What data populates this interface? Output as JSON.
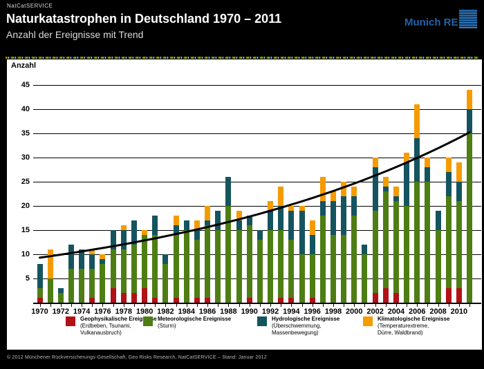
{
  "header": {
    "eyebrow": "NatCatSERVICE",
    "title": "Naturkatastrophen in Deutschland 1970 – 2011",
    "subtitle": "Anzahl der Ereignisse mit Trend",
    "brand": "Munich RE"
  },
  "chart_data": {
    "type": "bar",
    "stacked": true,
    "title": "Naturkatastrophen in Deutschland 1970 – 2011",
    "subtitle": "Anzahl der Ereignisse mit Trend",
    "ylabel": "Anzahl",
    "xlabel": "",
    "ylim": [
      0,
      45
    ],
    "yticks": [
      5,
      10,
      15,
      20,
      25,
      30,
      35,
      40,
      45
    ],
    "grid": "horizontal",
    "categories": [
      1970,
      1971,
      1972,
      1973,
      1974,
      1975,
      1976,
      1977,
      1978,
      1979,
      1980,
      1981,
      1982,
      1983,
      1984,
      1985,
      1986,
      1987,
      1988,
      1989,
      1990,
      1991,
      1992,
      1993,
      1994,
      1995,
      1996,
      1997,
      1998,
      1999,
      2000,
      2001,
      2002,
      2003,
      2004,
      2005,
      2006,
      2007,
      2008,
      2009,
      2010,
      2011
    ],
    "xtick_step": 2,
    "series": [
      {
        "name": "Geophysikalische Ereignisse",
        "detail": "(Erdbeben, Tsunami, Vulkanausbruch)",
        "color": "#b11117",
        "values": [
          1,
          0,
          0,
          0,
          0,
          1,
          0,
          3,
          2,
          2,
          3,
          1,
          0,
          1,
          0,
          1,
          1,
          0,
          0,
          0,
          1,
          0,
          0,
          1,
          1,
          0,
          1,
          0,
          0,
          0,
          0,
          0,
          2,
          3,
          2,
          0,
          0,
          0,
          0,
          3,
          3,
          0
        ]
      },
      {
        "name": "Meteorologische Ereignisse",
        "detail": "(Sturm)",
        "color": "#4e7e13",
        "values": [
          2,
          5,
          2,
          7,
          7,
          6,
          8,
          8,
          9,
          10,
          11,
          13,
          8,
          13,
          15,
          12,
          15,
          15,
          20,
          15,
          15,
          13,
          15,
          14,
          12,
          10,
          9,
          18,
          14,
          14,
          18,
          10,
          17,
          20,
          19,
          20,
          25,
          25,
          15,
          19,
          18,
          35
        ]
      },
      {
        "name": "Hydrologische Ereignisse",
        "detail": "(Überschwemmung, Massenbewegung)",
        "color": "#14545f",
        "values": [
          5,
          0,
          1,
          5,
          4,
          3,
          1,
          4,
          4,
          5,
          0,
          4,
          2,
          2,
          2,
          2,
          1,
          4,
          6,
          2,
          2,
          2,
          4,
          5,
          6,
          9,
          4,
          3,
          7,
          8,
          4,
          2,
          9,
          1,
          1,
          9,
          9,
          3,
          4,
          5,
          4,
          5
        ]
      },
      {
        "name": "Klimatologische Ereignisse",
        "detail": "(Temperaturextreme, Dürre, Waldbrand)",
        "color": "#f59b00",
        "values": [
          0,
          6,
          0,
          0,
          0,
          1,
          1,
          0,
          1,
          0,
          1,
          0,
          0,
          2,
          0,
          2,
          3,
          0,
          0,
          2,
          0,
          0,
          2,
          4,
          1,
          1,
          3,
          5,
          2,
          3,
          2,
          0,
          2,
          2,
          2,
          2,
          7,
          2,
          0,
          3,
          4,
          4
        ]
      }
    ],
    "trend": {
      "label": "Trend",
      "type": "exponential",
      "value_1970": 9.3,
      "value_2011": 35.2
    },
    "legend_position": "bottom"
  },
  "legend": {
    "items": [
      {
        "title": "Geophysikalische Ereignisse",
        "lines": [
          "(Erdbeben, Tsunami,",
          "Vulkanausbruch)"
        ],
        "color": "#b11117"
      },
      {
        "title": "Meteorologische Ereignisse",
        "lines": [
          "(Sturm)"
        ],
        "color": "#4e7e13"
      },
      {
        "title": "Hydrologische Ereignisse",
        "lines": [
          "(Überschwemmung,",
          "Massenbewegung)"
        ],
        "color": "#14545f"
      },
      {
        "title": "Klimatologische Ereignisse",
        "lines": [
          "(Temperaturextreme,",
          "Dürre, Waldbrand)"
        ],
        "color": "#f59b00"
      }
    ]
  },
  "footer": {
    "text": "© 2012 Münchener Rückversicherungs-Gesellschaft, Geo Risks Research, NatCatSERVICE – Stand: Januar 2012"
  }
}
